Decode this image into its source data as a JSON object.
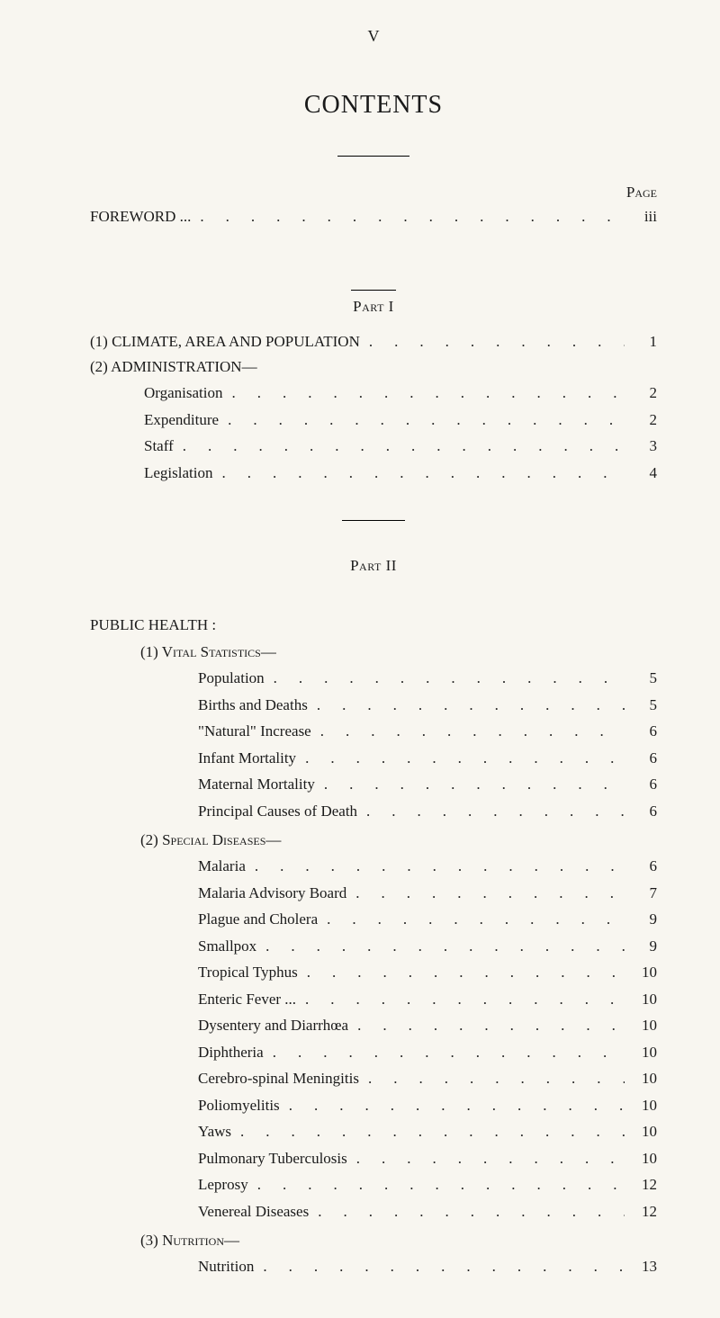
{
  "pageNumberTop": "V",
  "title": "CONTENTS",
  "pageLabel": "Page",
  "foreword": {
    "label": "FOREWORD ...",
    "page": "iii"
  },
  "partI": {
    "label": "Part I",
    "climate": {
      "label": "(1) CLIMATE, AREA AND POPULATION",
      "page": "1"
    },
    "adminHeading": "(2) ADMINISTRATION—",
    "admin": [
      {
        "label": "Organisation",
        "page": "2"
      },
      {
        "label": "Expenditure",
        "page": "2"
      },
      {
        "label": "Staff",
        "page": "3"
      },
      {
        "label": "Legislation",
        "page": "4"
      }
    ]
  },
  "partII": {
    "label": "Part II",
    "mainHeading": "PUBLIC HEALTH :",
    "vitalHeading": "(1) Vital Statistics—",
    "vital": [
      {
        "label": "Population",
        "page": "5"
      },
      {
        "label": "Births and Deaths",
        "page": "5"
      },
      {
        "label": "\"Natural\" Increase",
        "page": "6"
      },
      {
        "label": "Infant Mortality",
        "page": "6"
      },
      {
        "label": "Maternal Mortality",
        "page": "6"
      },
      {
        "label": "Principal Causes of Death",
        "page": "6"
      }
    ],
    "specialHeading": "(2) Special Diseases—",
    "special": [
      {
        "label": "Malaria",
        "page": "6"
      },
      {
        "label": "Malaria Advisory Board",
        "page": "7"
      },
      {
        "label": "Plague and Cholera",
        "page": "9"
      },
      {
        "label": "Smallpox",
        "page": "9"
      },
      {
        "label": "Tropical Typhus",
        "page": "10"
      },
      {
        "label": "Enteric Fever ...",
        "page": "10"
      },
      {
        "label": "Dysentery and Diarrhœa",
        "page": "10"
      },
      {
        "label": "Diphtheria",
        "page": "10"
      },
      {
        "label": "Cerebro-spinal Meningitis",
        "page": "10"
      },
      {
        "label": "Poliomyelitis",
        "page": "10"
      },
      {
        "label": "Yaws",
        "page": "10"
      },
      {
        "label": "Pulmonary Tuberculosis",
        "page": "10"
      },
      {
        "label": "Leprosy",
        "page": "12"
      },
      {
        "label": "Venereal Diseases",
        "page": "12"
      }
    ],
    "nutritionHeading": "(3) Nutrition—",
    "nutrition": [
      {
        "label": "Nutrition",
        "page": "13"
      }
    ]
  }
}
